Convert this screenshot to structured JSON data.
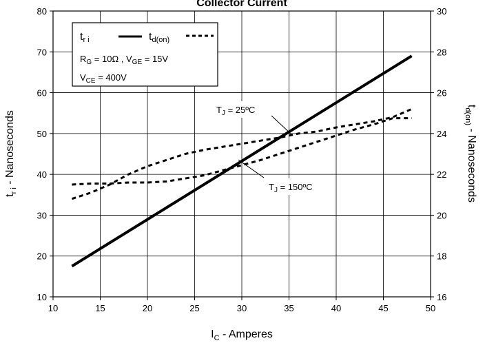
{
  "chart_data": {
    "type": "line",
    "title": "Collector Current",
    "xlabel": {
      "main": "I",
      "sub": "C",
      "rest": " - Amperes"
    },
    "ylabel_left": {
      "main": "t",
      "sub": "r i",
      "rest": " - Nanoseconds"
    },
    "ylabel_right": {
      "main": "t",
      "sub": "d(on)",
      "rest": " - Nanoseconds"
    },
    "xlim": [
      10,
      50
    ],
    "ylim_left": [
      10,
      80
    ],
    "ylim_right": [
      16,
      30
    ],
    "x_ticks": [
      "10",
      "15",
      "20",
      "25",
      "30",
      "35",
      "40",
      "45",
      "50"
    ],
    "y_left_ticks": [
      "10",
      "20",
      "30",
      "40",
      "50",
      "60",
      "70",
      "80"
    ],
    "y_right_ticks": [
      "16",
      "18",
      "20",
      "22",
      "24",
      "26",
      "28",
      "30"
    ],
    "grid": true,
    "legend": {
      "position": "top-left",
      "entries": [
        {
          "main": "t",
          "sub": "r i",
          "style": "solid"
        },
        {
          "main": "t",
          "sub": "d(on)",
          "style": "dashed"
        }
      ],
      "lines": [
        {
          "segments": [
            [
              "R",
              ""
            ],
            [
              "G",
              "sub"
            ],
            [
              " = 10Ω ,  V",
              ""
            ],
            [
              "GE",
              "sub"
            ],
            [
              " = 15V",
              ""
            ]
          ]
        },
        {
          "segments": [
            [
              "V",
              ""
            ],
            [
              "CE",
              "sub"
            ],
            [
              " = 400V",
              ""
            ]
          ]
        }
      ]
    },
    "series": [
      {
        "axis": "left",
        "style": "solid",
        "x": [
          12,
          48
        ],
        "y": [
          17.5,
          69
        ]
      },
      {
        "axis": "right",
        "style": "dashed",
        "x": [
          12,
          14,
          16,
          18,
          20,
          22,
          24,
          26,
          28,
          30,
          32,
          34,
          36,
          38,
          40,
          42,
          44,
          46,
          48
        ],
        "y": [
          20.8,
          21.1,
          21.5,
          22.0,
          22.4,
          22.7,
          23.0,
          23.2,
          23.35,
          23.5,
          23.65,
          23.8,
          24.0,
          24.1,
          24.3,
          24.45,
          24.6,
          24.8,
          25.2
        ]
      },
      {
        "axis": "right",
        "style": "dashed",
        "x": [
          12,
          14,
          16,
          18,
          20,
          22,
          24,
          26,
          28,
          30,
          32,
          34,
          36,
          38,
          40,
          42,
          44,
          46,
          48
        ],
        "y": [
          21.5,
          21.55,
          21.55,
          21.6,
          21.6,
          21.65,
          21.8,
          21.95,
          22.2,
          22.45,
          22.7,
          23.0,
          23.3,
          23.6,
          23.9,
          24.2,
          24.45,
          24.75,
          24.75
        ]
      }
    ],
    "annotations": [
      {
        "main": "T",
        "sub": "J",
        "rest": " = 25ºC"
      },
      {
        "main": "T",
        "sub": "J",
        "rest": " = 150ºC"
      }
    ]
  }
}
